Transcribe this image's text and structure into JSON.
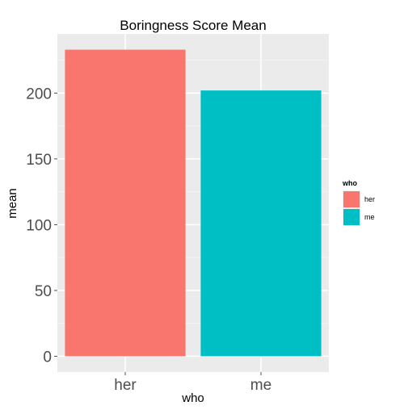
{
  "chart_data": {
    "type": "bar",
    "title": "Boringness Score Mean",
    "xlabel": "who",
    "ylabel": "mean",
    "categories": [
      "her",
      "me"
    ],
    "values": [
      233,
      202
    ],
    "colors": [
      "#F8766D",
      "#00BFC4"
    ],
    "ylim": [
      -12,
      245
    ],
    "yticks": [
      0,
      50,
      100,
      150,
      200
    ],
    "ytick_labels": [
      "0",
      "50",
      "100",
      "150",
      "200"
    ],
    "grid": true,
    "legend": {
      "title": "who",
      "placement": "right",
      "entries": [
        "her",
        "me"
      ]
    }
  }
}
